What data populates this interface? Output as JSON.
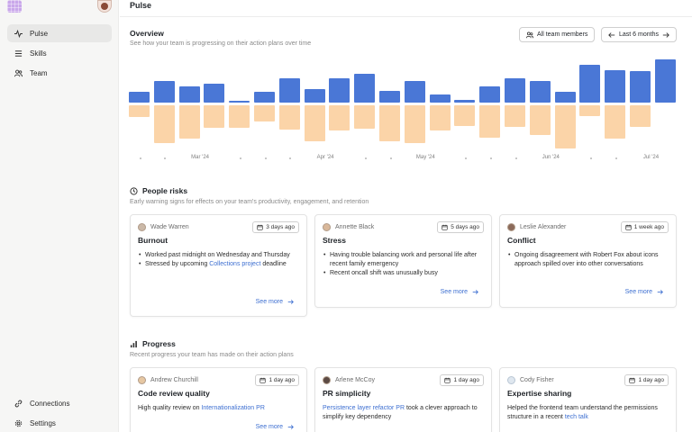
{
  "sidebar": {
    "logo": "grid-logo",
    "items": [
      {
        "label": "Pulse",
        "icon": "activity-icon",
        "active": true
      },
      {
        "label": "Skills",
        "icon": "list-icon"
      },
      {
        "label": "Team",
        "icon": "team-icon"
      }
    ],
    "bottom_items": [
      {
        "label": "Connections",
        "icon": "link-icon"
      },
      {
        "label": "Settings",
        "icon": "settings-icon"
      }
    ]
  },
  "header": {
    "title": "Pulse"
  },
  "overview": {
    "title": "Overview",
    "subtitle": "See how your team is progressing on their action plans over time",
    "filter_members": "All team members",
    "filter_period": "Last 6 months"
  },
  "chart_data": {
    "type": "bar",
    "up_values": [
      12,
      24,
      18,
      21,
      2,
      12,
      28,
      15,
      28,
      33,
      13,
      25,
      9,
      3,
      18,
      28,
      24,
      12,
      43,
      37,
      36,
      49
    ],
    "down_values": [
      13,
      42,
      37,
      25,
      25,
      18,
      27,
      40,
      28,
      26,
      40,
      42,
      28,
      23,
      36,
      24,
      33,
      48,
      12,
      37,
      24,
      0
    ],
    "tick_labels": [
      "Mar '24",
      "Apr '24",
      "May '24",
      "Jun '24",
      "Jul '24"
    ],
    "colors": {
      "up": "#4a77d6",
      "down": "#fbd4a8"
    }
  },
  "people_risks": {
    "title": "People risks",
    "subtitle": "Early warning signs for effects on your team's productivity, engagement, and retention",
    "cards": [
      {
        "name": "Wade Warren",
        "time": "3 days ago",
        "title": "Burnout",
        "b1": "Worked past midnight on Wednesday and Thursday",
        "b2_pre": "Stressed by upcoming ",
        "b2_link": "Collections project",
        "b2_post": " deadline",
        "see_more": "See more"
      },
      {
        "name": "Annette Black",
        "time": "5 days ago",
        "title": "Stress",
        "b1": "Having trouble balancing work and personal life after recent family emergency",
        "b2": "Recent oncall shift was unusually busy",
        "see_more": "See more"
      },
      {
        "name": "Leslie Alexander",
        "time": "1 week ago",
        "title": "Conflict",
        "b1": "Ongoing disagreement with Robert Fox about icons approach spilled over into other conversations",
        "see_more": "See more"
      }
    ]
  },
  "progress": {
    "title": "Progress",
    "subtitle": "Recent progress your team has made on their action plans",
    "cards": [
      {
        "name": "Andrew Churchill",
        "time": "1 day ago",
        "title": "Code review quality",
        "t_pre": "High quality review on ",
        "t_link": "Internationalization PR",
        "see_more": "See more"
      },
      {
        "name": "Arlene McCoy",
        "time": "1 day ago",
        "title": "PR simplicity",
        "t_link": "Persistence layer refactor PR",
        "t_post": " took a clever approach to simplify key dependency"
      },
      {
        "name": "Cody Fisher",
        "time": "1 day ago",
        "title": "Expertise sharing",
        "t_pre": "Helped the frontend team understand the permissions structure in a recent ",
        "t_link": "tech talk"
      }
    ]
  }
}
